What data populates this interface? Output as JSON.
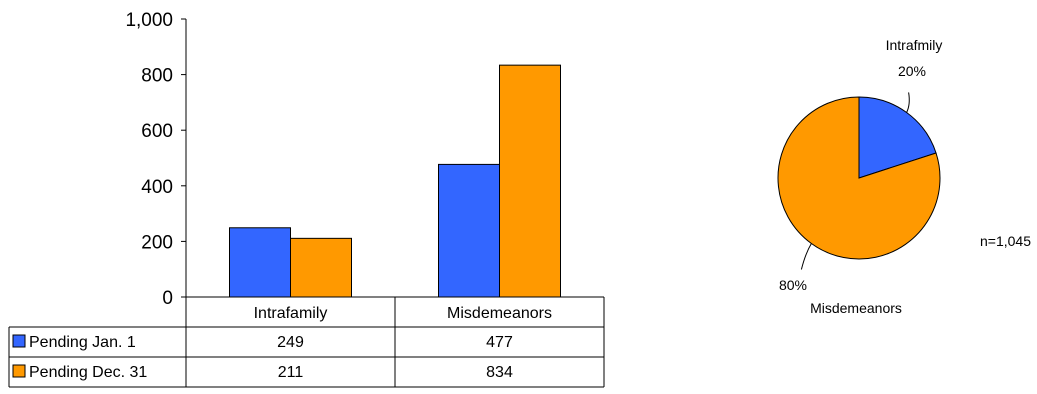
{
  "chart_data": [
    {
      "type": "bar",
      "categories": [
        "Intrafamily",
        "Misdemeanors"
      ],
      "series": [
        {
          "name": "Pending Jan. 1",
          "values": [
            249,
            477
          ],
          "color": "#3366ff"
        },
        {
          "name": "Pending Dec. 31",
          "values": [
            211,
            834
          ],
          "color": "#ff9900"
        }
      ],
      "ylim": [
        0,
        1000
      ],
      "yticks": [
        "0",
        "200",
        "400",
        "600",
        "800",
        "1,000"
      ],
      "ytick_values": [
        0,
        200,
        400,
        600,
        800,
        1000
      ],
      "data_table": true
    },
    {
      "type": "pie",
      "slices": [
        {
          "label": "Intrafmily",
          "percent_label": "20%",
          "value": 20,
          "color": "#3366ff"
        },
        {
          "label": "Misdemeanors",
          "percent_label": "80%",
          "value": 80,
          "color": "#ff9900"
        }
      ],
      "annotation": "n=1,045"
    }
  ]
}
